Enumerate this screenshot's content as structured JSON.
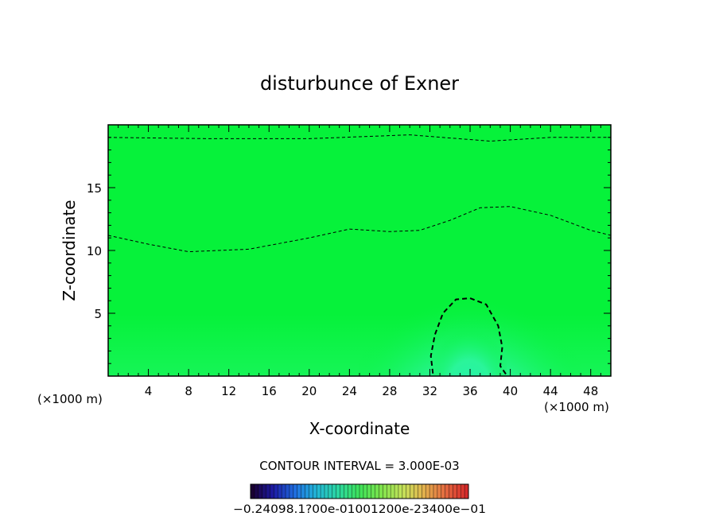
{
  "chart_data": {
    "type": "heatmap",
    "title": "disturbunce of Exner",
    "xlabel": "X-coordinate",
    "ylabel": "Z-coordinate",
    "x_unit_left": "(×1000 m)",
    "x_unit_right": "(×1000 m)",
    "xlim": [
      0,
      50
    ],
    "ylim": [
      0,
      20
    ],
    "x_ticks": [
      4,
      8,
      12,
      16,
      20,
      24,
      28,
      32,
      36,
      40,
      44,
      48
    ],
    "y_ticks": [
      5,
      10,
      15
    ],
    "contour_interval_text": "CONTOUR INTERVAL = 3.000E-03",
    "colorbar": {
      "label_text": "−0.24098.1?00e-01001200e-23400e−01",
      "range": [
        -0.24,
        0.24
      ],
      "colors": [
        "#1a0033",
        "#1c1ca6",
        "#1f6fe0",
        "#22b7d6",
        "#2bd6a0",
        "#3ee35a",
        "#7ee34d",
        "#c4e35a",
        "#e3b24d",
        "#e36a40",
        "#d62a2a"
      ]
    },
    "field_colors": {
      "background": "#06f23a",
      "band_low": "#0ef24a",
      "band_mid": "#1af55e",
      "anomaly": "#2af59a",
      "anomaly_core": "#22f0b4"
    },
    "contours": [
      {
        "style": "dashed",
        "points": [
          [
            0,
            19.0
          ],
          [
            10,
            18.9
          ],
          [
            20,
            18.9
          ],
          [
            30,
            19.2
          ],
          [
            38,
            18.7
          ],
          [
            44,
            19.0
          ],
          [
            50,
            19.0
          ]
        ]
      },
      {
        "style": "dashed",
        "points": [
          [
            0,
            11.2
          ],
          [
            4,
            10.5
          ],
          [
            8,
            9.9
          ],
          [
            14,
            10.1
          ],
          [
            20,
            11.0
          ],
          [
            24,
            11.7
          ],
          [
            28,
            11.5
          ],
          [
            31,
            11.6
          ],
          [
            34,
            12.4
          ],
          [
            37,
            13.4
          ],
          [
            40,
            13.5
          ],
          [
            44,
            12.8
          ],
          [
            48,
            11.6
          ],
          [
            50,
            11.2
          ]
        ]
      },
      {
        "style": "dashed-bold",
        "points": [
          [
            32.3,
            0.2
          ],
          [
            32.1,
            1.6
          ],
          [
            32.5,
            3.3
          ],
          [
            33.3,
            5.0
          ],
          [
            34.6,
            6.1
          ],
          [
            36.0,
            6.2
          ],
          [
            37.6,
            5.7
          ],
          [
            38.8,
            4.0
          ],
          [
            39.2,
            2.3
          ],
          [
            39.0,
            0.8
          ],
          [
            39.7,
            0.0
          ]
        ]
      }
    ]
  }
}
